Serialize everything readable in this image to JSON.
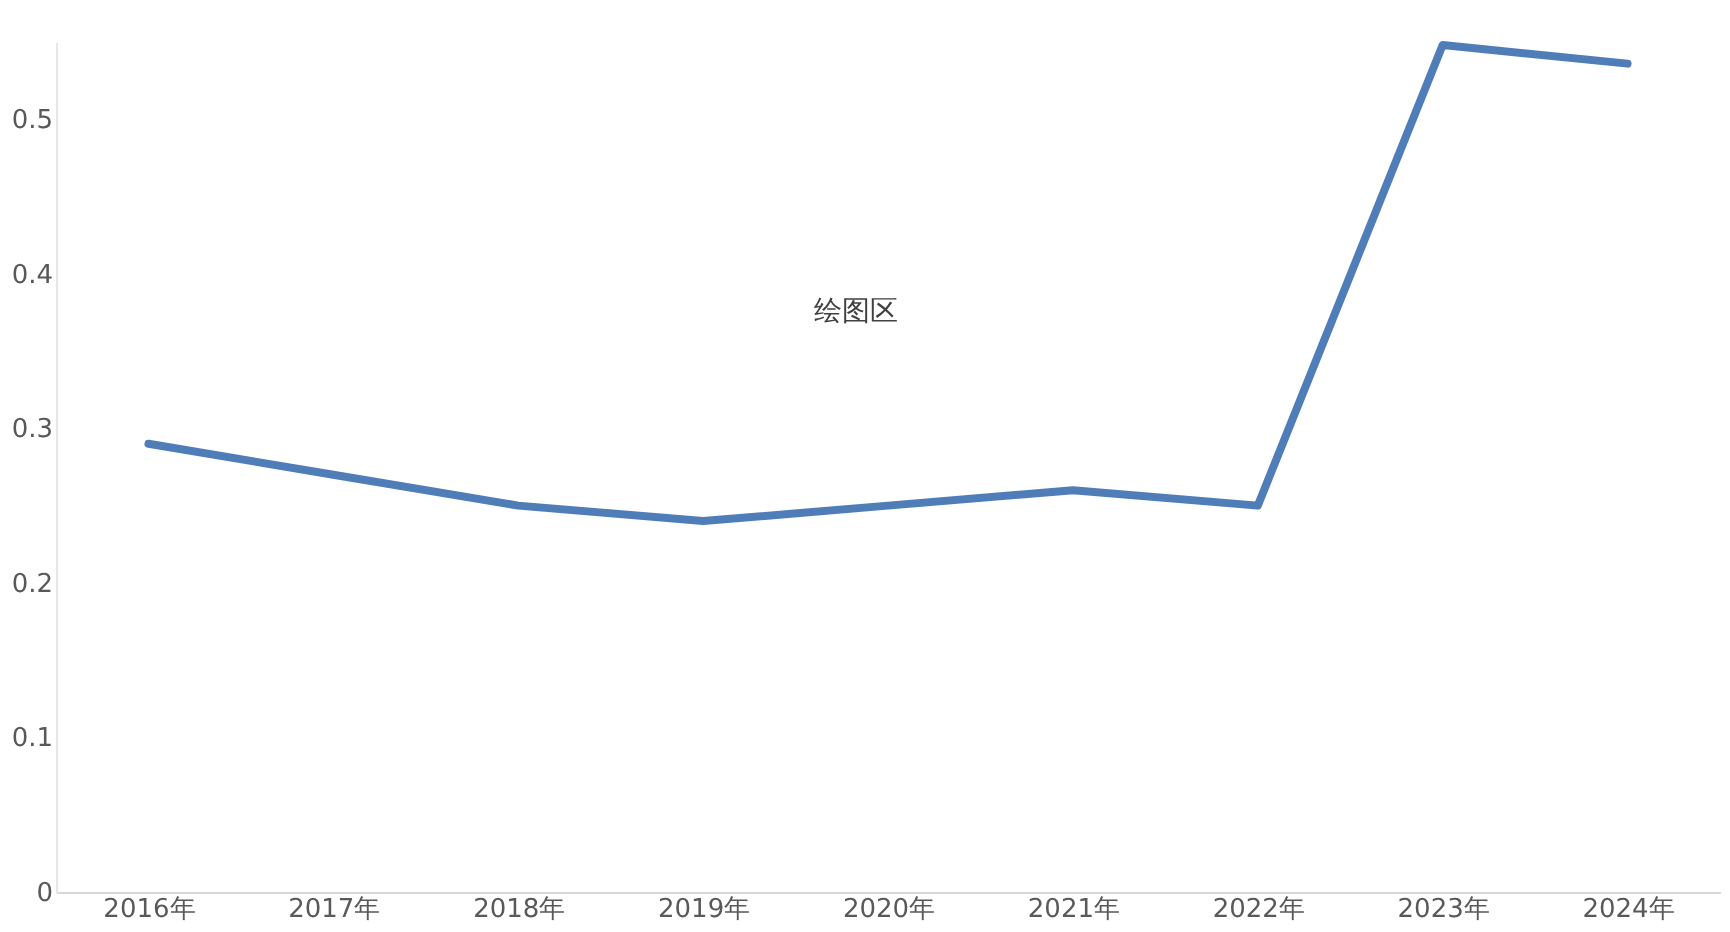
{
  "chart_data": {
    "type": "line",
    "categories": [
      "2016年",
      "2017年",
      "2018年",
      "2019年",
      "2020年",
      "2021年",
      "2022年",
      "2023年",
      "2024年"
    ],
    "series": [
      {
        "color": "#4f7db8",
        "values": [
          0.29,
          0.27,
          0.25,
          0.24,
          0.25,
          0.26,
          0.25,
          0.548,
          0.536
        ]
      }
    ],
    "ylim": [
      0,
      0.55
    ],
    "yticks": [
      0,
      0.1,
      0.2,
      0.3,
      0.4,
      0.5
    ],
    "grid": false,
    "marker": "none",
    "line_style": "solid",
    "annotations": [
      "绘图区"
    ]
  }
}
